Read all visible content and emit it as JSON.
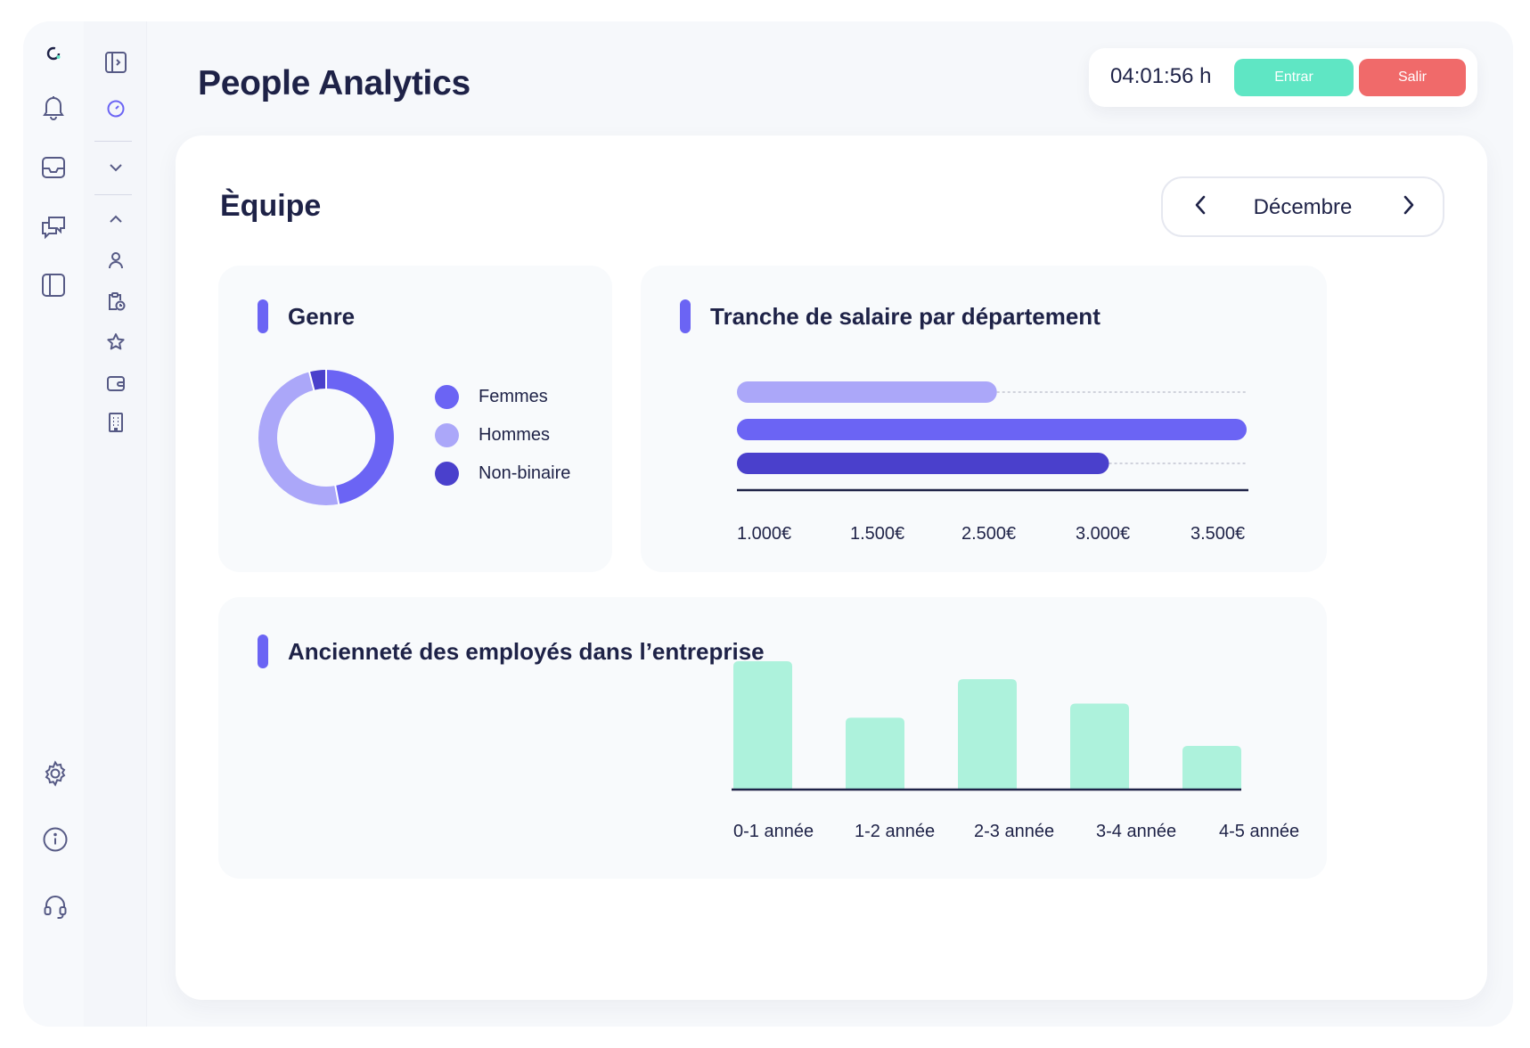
{
  "app": {
    "title": "People Analytics"
  },
  "timer": {
    "time": "04:01:56 h",
    "clock_in_label": "Entrar",
    "clock_out_label": "Salir"
  },
  "team": {
    "title": "Èquipe",
    "month": "Décembre"
  },
  "gender_panel": {
    "title": "Genre",
    "legend": [
      {
        "label": "Femmes",
        "color": "#6b64f4"
      },
      {
        "label": "Hommes",
        "color": "#aba7f9"
      },
      {
        "label": "Non-binaire",
        "color": "#4a40cc"
      }
    ]
  },
  "salary_panel": {
    "title": "Tranche de salaire par département",
    "ticks": [
      "1.000€",
      "1.500€",
      "2.500€",
      "3.000€",
      "3.500€"
    ]
  },
  "tenure_panel": {
    "title": "Ancienneté des employés dans l’entreprise",
    "categories": [
      "0-1 année",
      "1-2 année",
      "2-3 année",
      "3-4 année",
      "4-5 année"
    ]
  },
  "chart_data": [
    {
      "type": "pie",
      "title": "Genre",
      "labels": [
        "Femmes",
        "Hommes",
        "Non-binaire"
      ],
      "values": [
        47,
        49,
        4
      ],
      "colors": [
        "#6b64f4",
        "#aba7f9",
        "#4a40cc"
      ],
      "legend": "right"
    },
    {
      "type": "bar",
      "title": "Tranche de salaire par département",
      "orientation": "horizontal",
      "categories": [
        "",
        "",
        ""
      ],
      "x_ticks": [
        "1.000€",
        "1.500€",
        "2.500€",
        "3.000€",
        "3.500€"
      ],
      "values": [
        0.51,
        1.0,
        0.73
      ],
      "colors": [
        "#aba7f9",
        "#6b64f4",
        "#4a40cc"
      ]
    },
    {
      "type": "bar",
      "title": "Ancienneté des employés dans l’entreprise",
      "categories": [
        "0-1 année",
        "1-2 année",
        "2-3 année",
        "3-4 année",
        "4-5 année"
      ],
      "values": [
        100,
        56,
        86,
        67,
        34
      ],
      "color": "#adf2dc"
    }
  ]
}
